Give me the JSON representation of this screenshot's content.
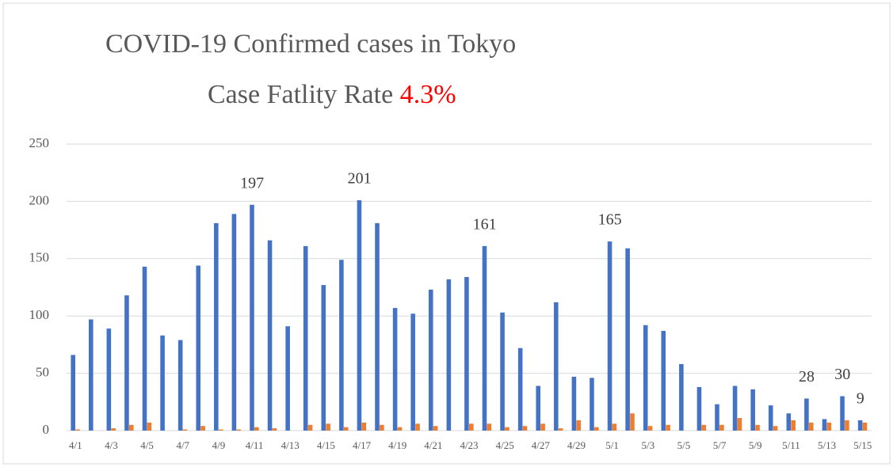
{
  "chart_data": {
    "type": "bar",
    "title": "COVID-19  Confirmed cases in Tokyo",
    "subtitle": "Case Fatlity Rate",
    "highlight": "4.3%",
    "highlight_color": "#ff0000",
    "categories": [
      "4/1",
      null,
      "4/3",
      null,
      "4/5",
      null,
      "4/7",
      null,
      "4/9",
      null,
      "4/11",
      null,
      "4/13",
      null,
      "4/15",
      null,
      "4/17",
      null,
      "4/19",
      null,
      "4/21",
      null,
      "4/23",
      null,
      "4/25",
      null,
      "4/27",
      null,
      "4/29",
      null,
      "5/1",
      null,
      "5/3",
      null,
      "5/5",
      null,
      "5/7",
      null,
      "5/9",
      null,
      "5/11",
      null,
      "5/13",
      null,
      "5/15"
    ],
    "series": [
      {
        "color": "#4472c4",
        "values": [
          66,
          97,
          89,
          118,
          143,
          83,
          79,
          144,
          181,
          189,
          197,
          166,
          91,
          161,
          127,
          149,
          201,
          181,
          107,
          102,
          123,
          132,
          134,
          161,
          103,
          72,
          39,
          112,
          47,
          46,
          165,
          159,
          92,
          87,
          58,
          38,
          23,
          39,
          36,
          22,
          15,
          28,
          10,
          30,
          9
        ],
        "value_labels": [
          null,
          null,
          null,
          null,
          null,
          null,
          null,
          null,
          null,
          null,
          "197",
          null,
          null,
          null,
          null,
          null,
          "201",
          null,
          null,
          null,
          null,
          null,
          null,
          "161",
          null,
          null,
          null,
          null,
          null,
          null,
          "165",
          null,
          null,
          null,
          null,
          null,
          null,
          null,
          null,
          null,
          null,
          "28",
          null,
          "30",
          "9"
        ]
      },
      {
        "color": "#ed7d31",
        "values": [
          1,
          0,
          2,
          5,
          7,
          0,
          1,
          4,
          1,
          1,
          3,
          2,
          0,
          5,
          6,
          3,
          7,
          5,
          3,
          6,
          4,
          0,
          6,
          6,
          3,
          4,
          6,
          2,
          9,
          3,
          6,
          15,
          4,
          5,
          0,
          5,
          5,
          11,
          5,
          4,
          9,
          7,
          7,
          9,
          7
        ]
      }
    ],
    "ylim": [
      0,
      250
    ],
    "yticks": [
      0,
      50,
      100,
      150,
      200,
      250
    ],
    "grid": true
  }
}
